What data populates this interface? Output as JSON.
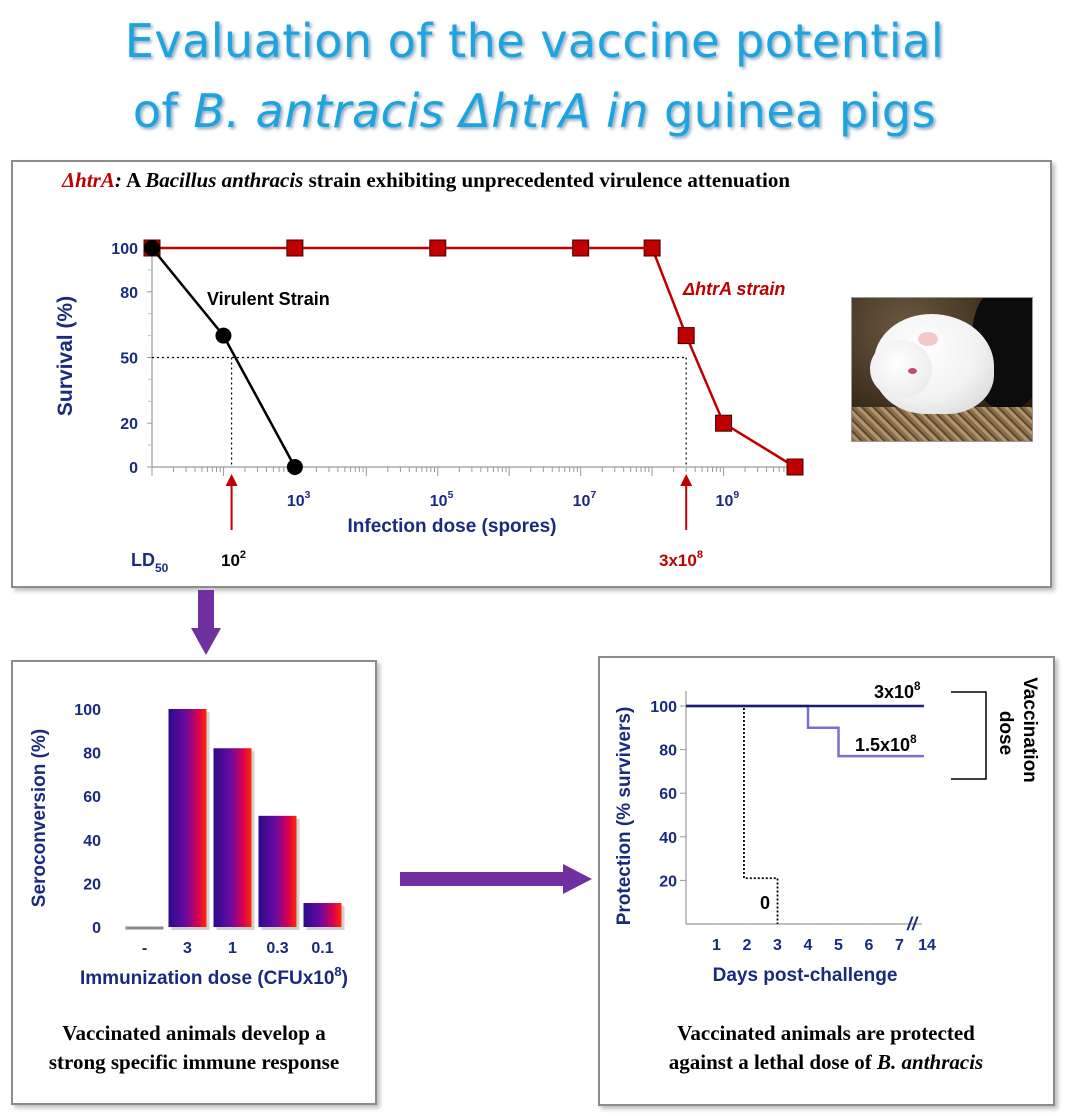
{
  "title": {
    "line1": "Evaluation of the vaccine potential",
    "line2_prefix": "of ",
    "line2_italic": "B. antracis ΔhtrA in",
    "line2_suffix": " guinea pigs"
  },
  "top_panel": {
    "heading_red": "ΔhtrA",
    "heading_colon": ":",
    "heading_a": " A ",
    "heading_italic": "Bacillus anthracis",
    "heading_rest": " strain exhibiting unprecedented virulence attenuation",
    "ld50_label": "LD",
    "ld50_sub": "50",
    "ld50_virulent_base": "10",
    "ld50_virulent_exp": "2",
    "ld50_htra_base": "3x10",
    "ld50_htra_exp": "8",
    "photo_name": "guinea-pig-photo"
  },
  "bottom_left_caption": {
    "line1": "Vaccinated animals develop a",
    "line2": "strong specific immune response"
  },
  "bottom_right_caption": {
    "line1": "Vaccinated animals are protected",
    "line2_prefix": "against a lethal dose of ",
    "line2_italic": "B. anthracis"
  },
  "colors": {
    "title": "#1da4e0",
    "axis_navy": "#1a2a80",
    "red": "#c00000",
    "arrow_purple": "#7030a0",
    "line_dark_navy": "#1c1c6e",
    "line_light_purple": "#7a6fd0"
  },
  "chart_data": [
    {
      "type": "line",
      "ylabel": "Survival (%)",
      "xlabel": "Infection dose (spores)",
      "x_scale": "log",
      "x_ticks": [
        {
          "base": "10",
          "exp": "3",
          "value": 1000
        },
        {
          "base": "10",
          "exp": "5",
          "value": 100000
        },
        {
          "base": "10",
          "exp": "7",
          "value": 10000000
        },
        {
          "base": "10",
          "exp": "9",
          "value": 1000000000
        }
      ],
      "y_ticks": [
        0,
        20,
        50,
        80,
        100
      ],
      "ylim": [
        0,
        100
      ],
      "series": [
        {
          "name": "Virulent Strain",
          "color": "#000000",
          "marker": "circle",
          "x": [
            10,
            100,
            1000
          ],
          "y": [
            100,
            60,
            0
          ]
        },
        {
          "name": "ΔhtrA strain",
          "color": "#c00000",
          "marker": "square",
          "x": [
            10,
            1000,
            100000,
            10000000,
            100000000,
            300000000,
            1000000000,
            10000000000
          ],
          "y": [
            100,
            100,
            100,
            100,
            100,
            60,
            20,
            0
          ]
        }
      ],
      "reference_line_y": 50
    },
    {
      "type": "bar",
      "ylabel": "Seroconversion (%)",
      "xlabel_base": "Immunization dose (CFUx10",
      "xlabel_exp": "8",
      "xlabel_end": ")",
      "categories": [
        "-",
        "3",
        "1",
        "0.3",
        "0.1"
      ],
      "values": [
        0,
        100,
        82,
        51,
        11
      ],
      "ylim": [
        0,
        100
      ],
      "y_ticks": [
        0,
        20,
        40,
        60,
        80,
        100
      ]
    },
    {
      "type": "line",
      "ylabel": "Protection (% survivers)",
      "xlabel": "Days post-challenge",
      "x_ticks": [
        "1",
        "2",
        "3",
        "4",
        "5",
        "6",
        "7",
        "14"
      ],
      "axis_break": "//",
      "y_ticks": [
        20,
        40,
        60,
        80,
        100
      ],
      "ylim": [
        0,
        100
      ],
      "bracket_label_line1": "Vaccination",
      "bracket_label_line2": "dose",
      "series": [
        {
          "base": "3x10",
          "exp": "8",
          "color": "#1c1c6e",
          "style": "solid",
          "x": [
            0,
            7.8
          ],
          "y": [
            100,
            100
          ]
        },
        {
          "base": "1.5x10",
          "exp": "8",
          "color": "#7a6fd0",
          "style": "solid",
          "x": [
            0,
            4,
            4,
            5,
            5,
            7.8
          ],
          "y": [
            100,
            100,
            90,
            90,
            77,
            77
          ]
        },
        {
          "label": "0",
          "color": "#000000",
          "style": "dotted",
          "x": [
            0,
            1.9,
            1.9,
            3,
            3
          ],
          "y": [
            100,
            100,
            21,
            21,
            0
          ]
        }
      ]
    }
  ]
}
